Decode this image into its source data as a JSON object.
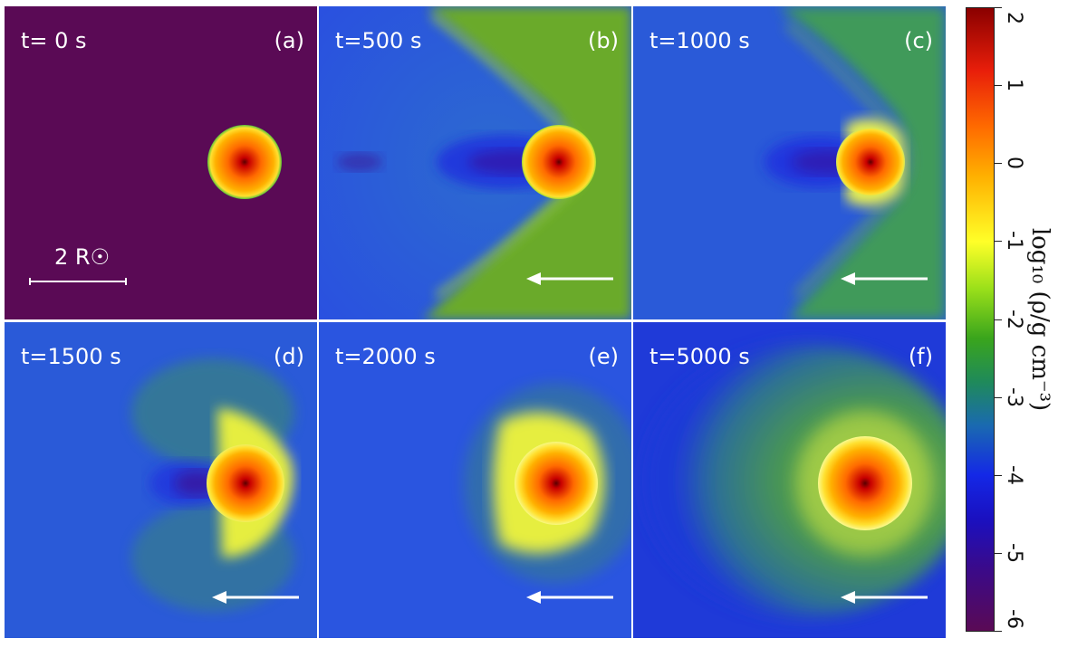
{
  "panels": [
    {
      "time": "t= 0 s",
      "letter": "(a)",
      "scale_label": "2 R☉",
      "background": "#5a0a55"
    },
    {
      "time": "t=500 s",
      "letter": "(b)",
      "background": "#2a55e0"
    },
    {
      "time": "t=1000 s",
      "letter": "(c)",
      "background": "#2a5ad8"
    },
    {
      "time": "t=1500 s",
      "letter": "(d)",
      "background": "#2a5ad8"
    },
    {
      "time": "t=2000 s",
      "letter": "(e)",
      "background": "#2a55e0"
    },
    {
      "time": "t=5000 s",
      "letter": "(f)",
      "background": "#1f3ad8"
    }
  ],
  "colorbar": {
    "title": "log₁₀ (ρ/g cm⁻³)",
    "ticks": [
      "2",
      "1",
      "0",
      "-1",
      "-2",
      "-3",
      "-4",
      "-5",
      "-6"
    ],
    "top_color": "#8a0000",
    "bottom_color": "#5a0a55"
  }
}
